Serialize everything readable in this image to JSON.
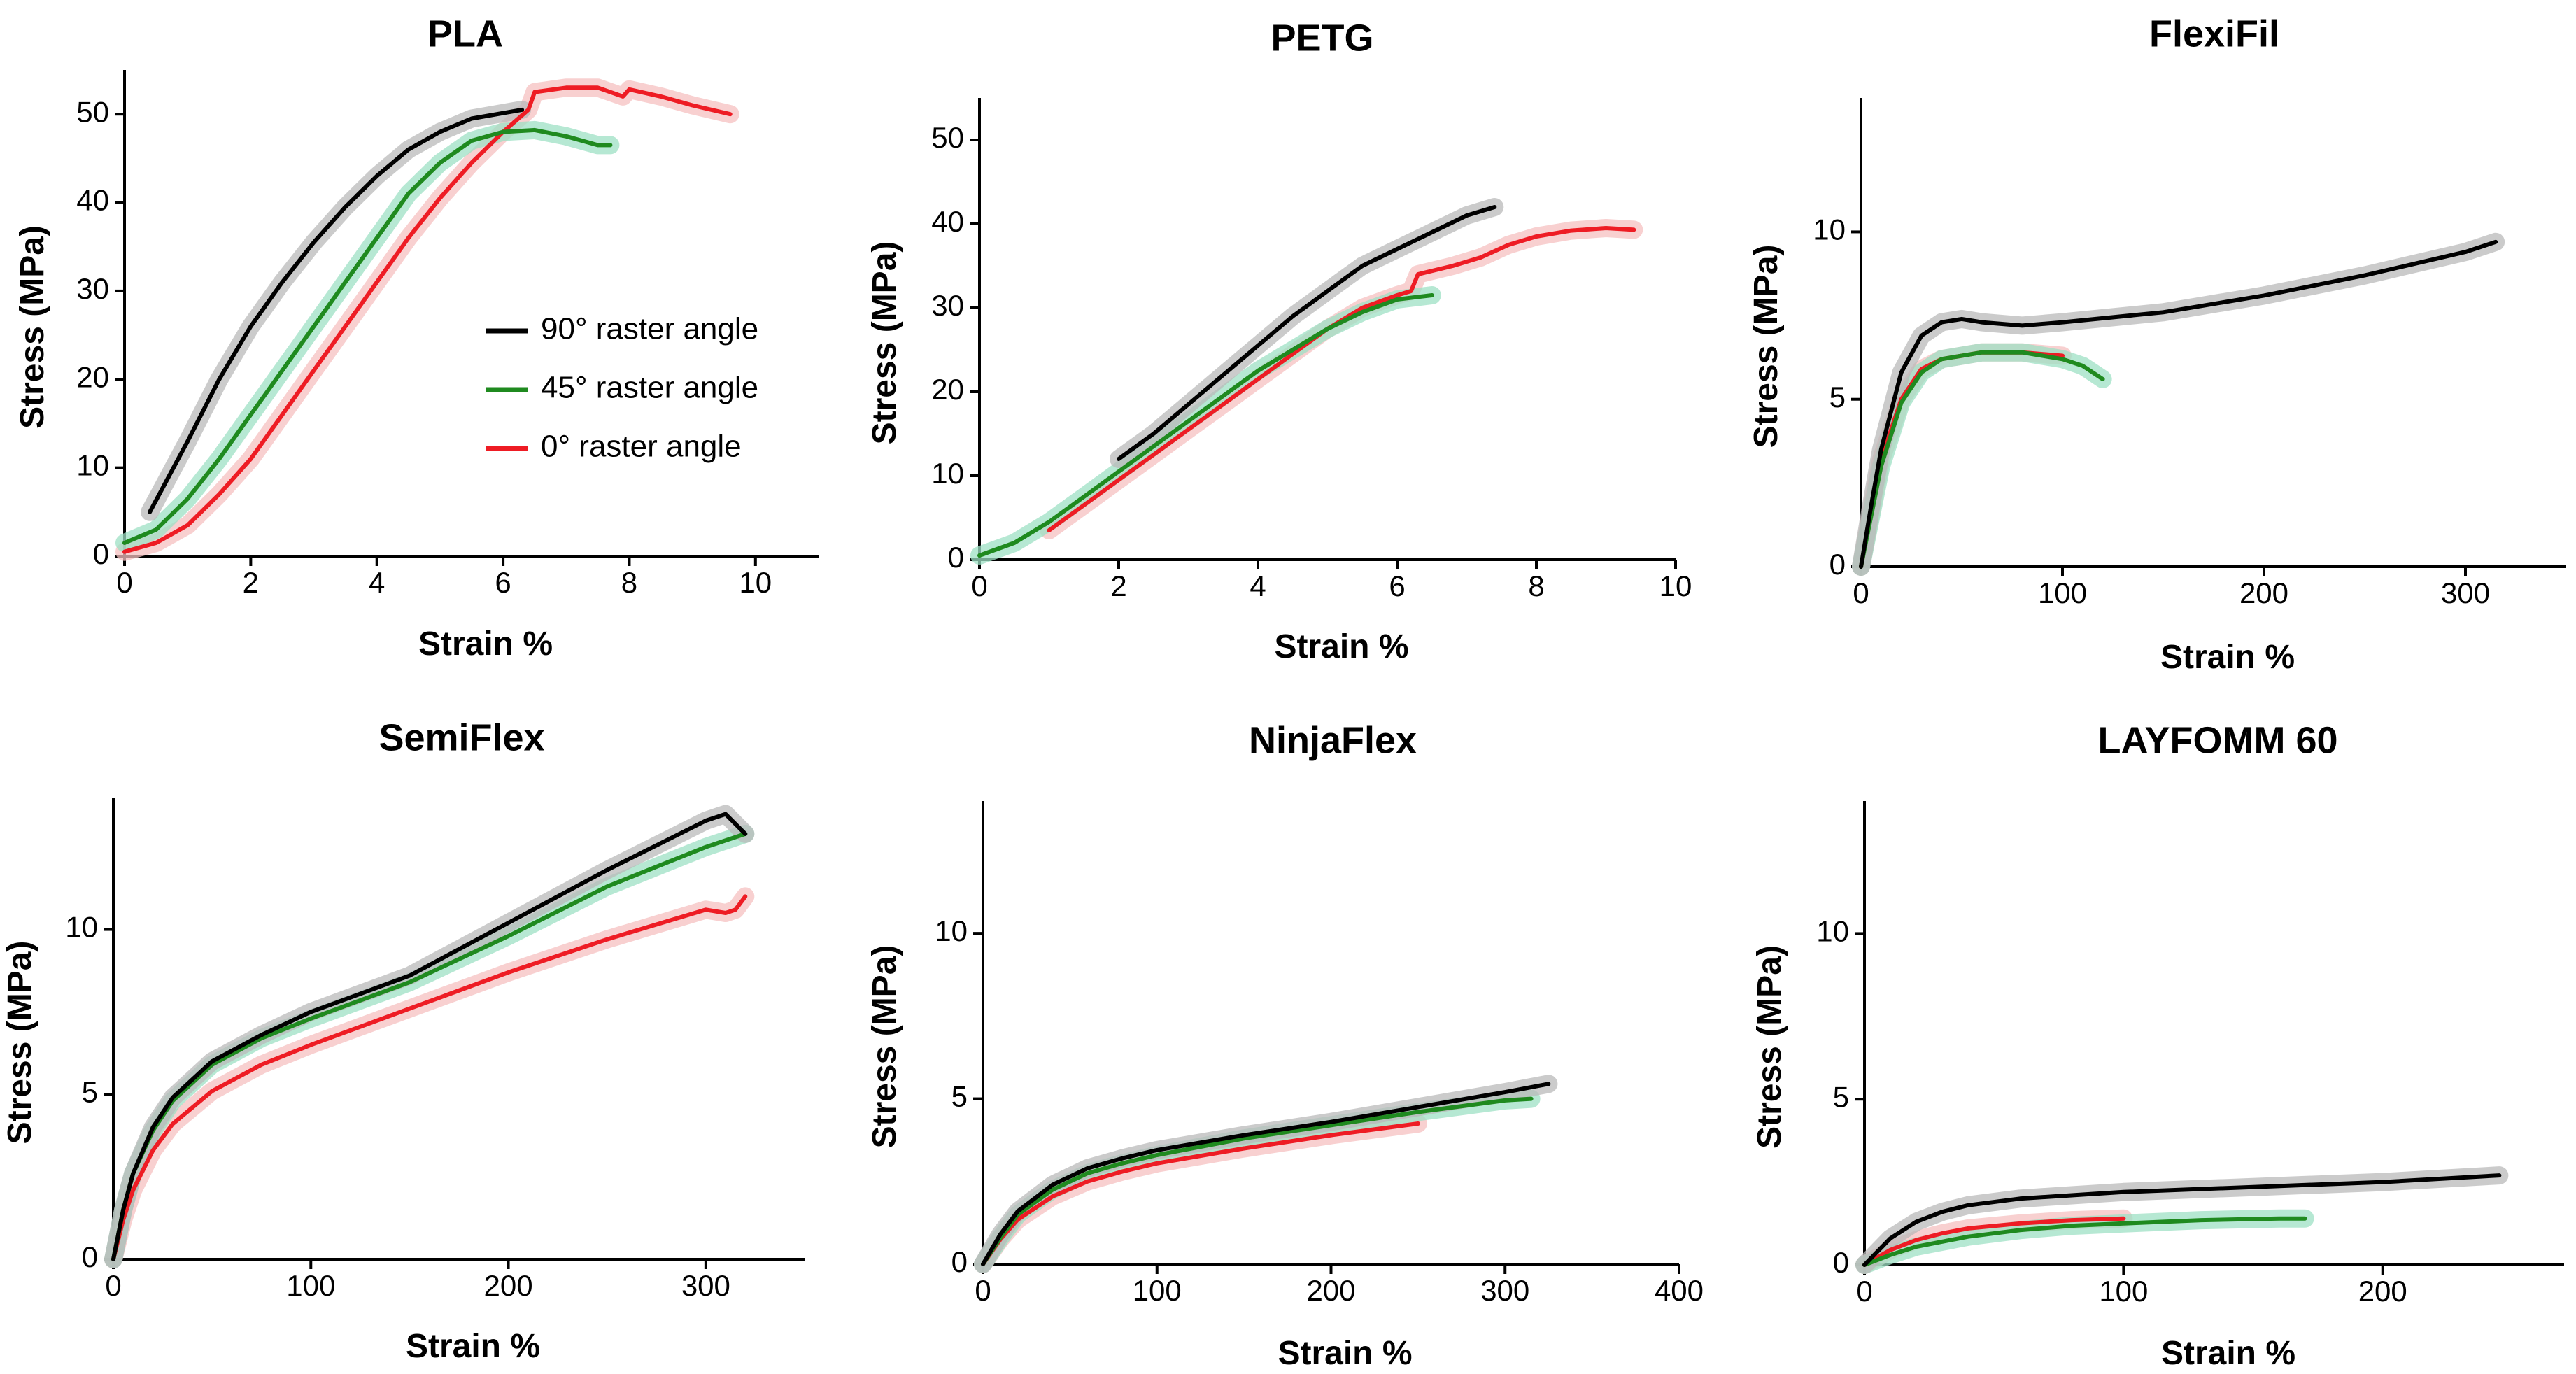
{
  "colors": {
    "black": "#000000",
    "green": "#1f8a1f",
    "red": "#ee1c24",
    "shade_black": "#b9b9b9",
    "shade_green": "#9ee0c4",
    "shade_red": "#f6c0c0"
  },
  "legend": {
    "entries": [
      {
        "name": "90° raster angle",
        "color_key": "black"
      },
      {
        "name": "45° raster angle",
        "color_key": "green"
      },
      {
        "name": "0° raster angle",
        "color_key": "red"
      }
    ],
    "placement": "inside PLA panel, lower-right"
  },
  "chart_data": [
    {
      "type": "line",
      "title": "PLA",
      "xlabel": "Strain  %",
      "ylabel": "Stress (MPa)",
      "xlim": [
        0,
        11
      ],
      "ylim": [
        0,
        55
      ],
      "xticks": [
        0,
        2,
        4,
        6,
        8,
        10
      ],
      "yticks": [
        0,
        10,
        20,
        30,
        40,
        50
      ],
      "legend": true,
      "series": [
        {
          "name": "90° raster angle",
          "color_key": "black",
          "x": [
            0.4,
            1,
            1.5,
            2,
            2.5,
            3,
            3.5,
            4,
            4.5,
            5,
            5.5,
            6.3
          ],
          "y": [
            5,
            13,
            20,
            26,
            31,
            35.5,
            39.5,
            43,
            46,
            48,
            49.5,
            50.5
          ]
        },
        {
          "name": "45° raster angle",
          "color_key": "green",
          "x": [
            0,
            0.5,
            1,
            1.5,
            2,
            2.5,
            3,
            3.5,
            4,
            4.5,
            5,
            5.5,
            6,
            6.5,
            7,
            7.5,
            7.7
          ],
          "y": [
            1.5,
            3,
            6.5,
            11,
            16,
            21,
            26,
            31,
            36,
            41,
            44.5,
            47,
            48,
            48.2,
            47.5,
            46.5,
            46.5
          ]
        },
        {
          "name": "0° raster angle",
          "color_key": "red",
          "x": [
            0,
            0.5,
            1,
            1.5,
            2,
            2.5,
            3,
            3.5,
            4,
            4.5,
            5,
            5.5,
            6,
            6.4,
            6.5,
            7,
            7.5,
            7.9,
            8,
            8.5,
            9,
            9.6
          ],
          "y": [
            0.5,
            1.5,
            3.5,
            7,
            11,
            16,
            21,
            26,
            31,
            36,
            40.5,
            44.5,
            48,
            50.5,
            52.5,
            53,
            53,
            52,
            52.8,
            52,
            51,
            50
          ]
        }
      ]
    },
    {
      "type": "line",
      "title": "PETG",
      "xlabel": "Strain  %",
      "ylabel": "Stress (MPa)",
      "xlim": [
        0,
        10
      ],
      "ylim": [
        0,
        55
      ],
      "xticks": [
        0,
        2,
        4,
        6,
        8,
        10
      ],
      "yticks": [
        0,
        10,
        20,
        30,
        40,
        50
      ],
      "legend": false,
      "series": [
        {
          "name": "90° raster angle",
          "color_key": "black",
          "x": [
            2,
            2.5,
            3,
            3.5,
            4,
            4.5,
            5,
            5.5,
            6,
            6.5,
            7,
            7.4
          ],
          "y": [
            12,
            15,
            18.5,
            22,
            25.5,
            29,
            32,
            35,
            37,
            39,
            41,
            42
          ]
        },
        {
          "name": "45° raster angle",
          "color_key": "green",
          "x": [
            0,
            0.5,
            1,
            1.5,
            2,
            2.5,
            3,
            3.5,
            4,
            4.5,
            5,
            5.5,
            6,
            6.5
          ],
          "y": [
            0.5,
            2,
            4.5,
            7.5,
            10.5,
            13.5,
            16.5,
            19.5,
            22.5,
            25,
            27.5,
            29.5,
            31,
            31.5
          ]
        },
        {
          "name": "0° raster angle",
          "color_key": "red",
          "x": [
            1,
            1.5,
            2,
            2.5,
            3,
            3.5,
            4,
            4.5,
            5,
            5.5,
            6,
            6.2,
            6.3,
            6.8,
            7.2,
            7.6,
            8,
            8.5,
            9,
            9.4
          ],
          "y": [
            3.5,
            6.5,
            9.5,
            12.5,
            15.5,
            18.5,
            21.5,
            24.5,
            27.5,
            30,
            31.5,
            32,
            34,
            35,
            36,
            37.5,
            38.5,
            39.2,
            39.5,
            39.3
          ]
        }
      ]
    },
    {
      "type": "line",
      "title": "FlexiFil",
      "xlabel": "Strain  %",
      "ylabel": "Stress  (MPa)",
      "xlim": [
        0,
        350
      ],
      "ylim": [
        0,
        14
      ],
      "xticks": [
        0,
        100,
        200,
        300
      ],
      "yticks": [
        0,
        5,
        10
      ],
      "legend": false,
      "series": [
        {
          "name": "90° raster angle",
          "color_key": "black",
          "x": [
            0,
            5,
            10,
            20,
            30,
            40,
            50,
            60,
            80,
            100,
            150,
            200,
            250,
            300,
            315
          ],
          "y": [
            0,
            1.8,
            3.5,
            5.8,
            6.9,
            7.3,
            7.4,
            7.3,
            7.2,
            7.3,
            7.6,
            8.1,
            8.7,
            9.4,
            9.7
          ]
        },
        {
          "name": "45° raster angle",
          "color_key": "green",
          "x": [
            0,
            5,
            10,
            20,
            30,
            40,
            60,
            80,
            90,
            100,
            110,
            115,
            120
          ],
          "y": [
            0,
            1.5,
            3,
            4.9,
            5.8,
            6.2,
            6.4,
            6.4,
            6.3,
            6.2,
            6,
            5.8,
            5.6
          ]
        },
        {
          "name": "0° raster angle",
          "color_key": "red",
          "x": [
            0,
            5,
            10,
            20,
            30,
            40,
            60,
            80,
            100
          ],
          "y": [
            0,
            1.6,
            3.2,
            5,
            5.9,
            6.2,
            6.4,
            6.4,
            6.3
          ]
        }
      ]
    },
    {
      "type": "line",
      "title": "SemiFlex",
      "xlabel": "Strain  %",
      "ylabel": "Stress  (MPa)",
      "xlim": [
        0,
        350
      ],
      "ylim": [
        0,
        14
      ],
      "xticks": [
        0,
        100,
        200,
        300
      ],
      "yticks": [
        0,
        5,
        10
      ],
      "legend": false,
      "series": [
        {
          "name": "90° raster angle",
          "color_key": "black",
          "x": [
            0,
            5,
            10,
            20,
            30,
            50,
            75,
            100,
            150,
            200,
            250,
            300,
            310,
            315,
            320
          ],
          "y": [
            0,
            1.5,
            2.6,
            4,
            4.9,
            6,
            6.8,
            7.5,
            8.6,
            10.2,
            11.8,
            13.3,
            13.5,
            13.2,
            12.9
          ]
        },
        {
          "name": "45° raster angle",
          "color_key": "green",
          "x": [
            0,
            5,
            10,
            20,
            30,
            50,
            75,
            100,
            150,
            200,
            250,
            300,
            320
          ],
          "y": [
            0,
            1.5,
            2.6,
            3.9,
            4.8,
            5.9,
            6.7,
            7.3,
            8.4,
            9.8,
            11.3,
            12.5,
            12.9
          ]
        },
        {
          "name": "0° raster angle",
          "color_key": "red",
          "x": [
            0,
            5,
            10,
            20,
            30,
            50,
            75,
            100,
            150,
            200,
            250,
            300,
            310,
            315,
            320
          ],
          "y": [
            0,
            1.2,
            2.1,
            3.3,
            4.1,
            5.1,
            5.9,
            6.5,
            7.6,
            8.7,
            9.7,
            10.6,
            10.5,
            10.6,
            11
          ]
        }
      ]
    },
    {
      "type": "line",
      "title": "NinjaFlex",
      "xlabel": "Strain %",
      "ylabel": "Stress (MPa)",
      "xlim": [
        0,
        400
      ],
      "ylim": [
        0,
        14
      ],
      "xticks": [
        0,
        100,
        200,
        300,
        400
      ],
      "yticks": [
        0,
        5,
        10
      ],
      "legend": false,
      "series": [
        {
          "name": "90° raster angle",
          "color_key": "black",
          "x": [
            0,
            10,
            20,
            40,
            60,
            80,
            100,
            150,
            200,
            250,
            300,
            325
          ],
          "y": [
            0,
            0.9,
            1.6,
            2.4,
            2.9,
            3.2,
            3.45,
            3.9,
            4.3,
            4.75,
            5.2,
            5.45
          ]
        },
        {
          "name": "45° raster angle",
          "color_key": "green",
          "x": [
            0,
            10,
            20,
            40,
            60,
            80,
            100,
            150,
            200,
            250,
            300,
            315
          ],
          "y": [
            0,
            0.8,
            1.5,
            2.25,
            2.75,
            3.05,
            3.3,
            3.8,
            4.2,
            4.6,
            4.95,
            5
          ]
        },
        {
          "name": "0° raster angle",
          "color_key": "red",
          "x": [
            0,
            10,
            20,
            40,
            60,
            80,
            100,
            150,
            200,
            250
          ],
          "y": [
            0,
            0.75,
            1.35,
            2.05,
            2.5,
            2.8,
            3.05,
            3.5,
            3.9,
            4.25
          ]
        }
      ]
    },
    {
      "type": "line",
      "title": "LAYFOMM 60",
      "xlabel": "Strain  %",
      "ylabel": "Stress  (MPa)",
      "xlim": [
        0,
        270
      ],
      "ylim": [
        0,
        14
      ],
      "xticks": [
        0,
        100,
        200
      ],
      "yticks": [
        0,
        5,
        10
      ],
      "legend": false,
      "series": [
        {
          "name": "90° raster angle",
          "color_key": "black",
          "x": [
            0,
            10,
            20,
            30,
            40,
            60,
            80,
            100,
            150,
            200,
            245
          ],
          "y": [
            0,
            0.8,
            1.3,
            1.6,
            1.8,
            2.0,
            2.1,
            2.2,
            2.35,
            2.5,
            2.7
          ]
        },
        {
          "name": "45° raster angle",
          "color_key": "green",
          "x": [
            0,
            10,
            20,
            40,
            60,
            80,
            100,
            130,
            160,
            170
          ],
          "y": [
            0,
            0.3,
            0.55,
            0.85,
            1.05,
            1.18,
            1.25,
            1.35,
            1.4,
            1.4
          ]
        },
        {
          "name": "0° raster angle",
          "color_key": "red",
          "x": [
            0,
            10,
            20,
            30,
            40,
            60,
            80,
            100
          ],
          "y": [
            0,
            0.45,
            0.75,
            0.95,
            1.1,
            1.25,
            1.35,
            1.4
          ]
        }
      ]
    }
  ]
}
